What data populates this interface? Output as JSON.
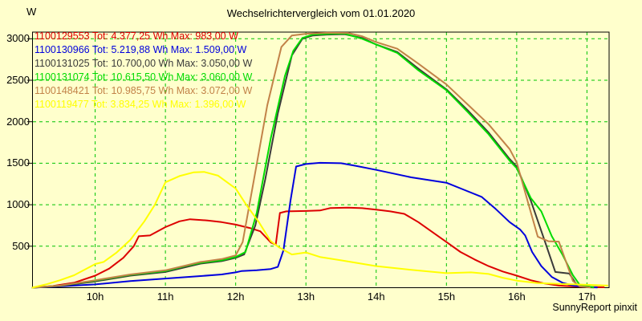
{
  "title": "Wechselrichtervergleich vom 01.01.2020",
  "y_unit": "W",
  "watermark": "SunnyReport pinxit",
  "colors": {
    "background": "#FFFFCC",
    "frame": "#000000",
    "grid": "#00C400",
    "text": "#000000"
  },
  "chart_data": {
    "type": "line",
    "title": "Wechselrichtervergleich vom 01.01.2020",
    "xlabel": "",
    "ylabel": "W",
    "grid": true,
    "legend_position": "top-left",
    "xlim_hours": [
      9.1,
      17.32
    ],
    "ylim": [
      0,
      3080
    ],
    "x_tick_hours": [
      10,
      11,
      12,
      13,
      14,
      15,
      16,
      17
    ],
    "x_tick_labels": [
      "10h",
      "11h",
      "12h",
      "13h",
      "14h",
      "15h",
      "16h",
      "17h"
    ],
    "y_ticks": [
      500,
      1000,
      1500,
      2000,
      2500,
      3000
    ],
    "series": [
      {
        "id": "1100129553",
        "legend": "1100129553 Tot: 4.377,25 Wh Max: 983,00 W",
        "total_wh": "4.377,25",
        "max_w": "983,00",
        "color": "#DD0000",
        "points": [
          [
            9.1,
            0
          ],
          [
            9.4,
            20
          ],
          [
            9.7,
            60
          ],
          [
            10.0,
            145
          ],
          [
            10.2,
            230
          ],
          [
            10.4,
            360
          ],
          [
            10.55,
            500
          ],
          [
            10.62,
            620
          ],
          [
            10.78,
            630
          ],
          [
            11.0,
            730
          ],
          [
            11.2,
            800
          ],
          [
            11.35,
            825
          ],
          [
            11.6,
            810
          ],
          [
            11.8,
            790
          ],
          [
            12.0,
            760
          ],
          [
            12.2,
            720
          ],
          [
            12.35,
            680
          ],
          [
            12.5,
            545
          ],
          [
            12.57,
            517
          ],
          [
            12.63,
            900
          ],
          [
            12.72,
            920
          ],
          [
            13.0,
            925
          ],
          [
            13.2,
            930
          ],
          [
            13.35,
            960
          ],
          [
            13.6,
            965
          ],
          [
            13.8,
            958
          ],
          [
            14.0,
            940
          ],
          [
            14.2,
            920
          ],
          [
            14.4,
            890
          ],
          [
            14.6,
            790
          ],
          [
            14.8,
            670
          ],
          [
            15.0,
            550
          ],
          [
            15.2,
            430
          ],
          [
            15.4,
            340
          ],
          [
            15.6,
            260
          ],
          [
            15.8,
            195
          ],
          [
            16.0,
            145
          ],
          [
            16.2,
            90
          ],
          [
            16.4,
            50
          ],
          [
            16.6,
            25
          ],
          [
            16.8,
            15
          ],
          [
            17.0,
            10
          ],
          [
            17.25,
            5
          ]
        ]
      },
      {
        "id": "1100130966",
        "legend": "1100130966 Tot: 5.219,88 Wh Max: 1.509,00 W",
        "total_wh": "5.219,88",
        "max_w": "1.509,00",
        "color": "#0000DD",
        "points": [
          [
            9.1,
            0
          ],
          [
            9.5,
            15
          ],
          [
            10.0,
            40
          ],
          [
            10.5,
            80
          ],
          [
            11.0,
            110
          ],
          [
            11.5,
            140
          ],
          [
            11.8,
            160
          ],
          [
            12.0,
            185
          ],
          [
            12.08,
            200
          ],
          [
            12.3,
            210
          ],
          [
            12.5,
            225
          ],
          [
            12.6,
            250
          ],
          [
            12.68,
            450
          ],
          [
            12.78,
            1050
          ],
          [
            12.86,
            1460
          ],
          [
            13.0,
            1490
          ],
          [
            13.2,
            1505
          ],
          [
            13.5,
            1500
          ],
          [
            13.7,
            1470
          ],
          [
            14.0,
            1420
          ],
          [
            14.5,
            1330
          ],
          [
            15.0,
            1265
          ],
          [
            15.25,
            1180
          ],
          [
            15.5,
            1095
          ],
          [
            15.7,
            950
          ],
          [
            15.9,
            790
          ],
          [
            16.05,
            700
          ],
          [
            16.12,
            630
          ],
          [
            16.22,
            430
          ],
          [
            16.35,
            260
          ],
          [
            16.5,
            130
          ],
          [
            16.65,
            60
          ],
          [
            16.8,
            25
          ],
          [
            17.0,
            8
          ],
          [
            17.15,
            3
          ]
        ]
      },
      {
        "id": "1100131025",
        "legend": "1100131025 Tot: 10.700,00 Wh Max: 3.050,00 W",
        "total_wh": "10.700,00",
        "max_w": "3.050,00",
        "color": "#3A3A3A",
        "points": [
          [
            9.1,
            0
          ],
          [
            9.5,
            20
          ],
          [
            10.0,
            75
          ],
          [
            10.5,
            145
          ],
          [
            11.0,
            190
          ],
          [
            11.3,
            250
          ],
          [
            11.5,
            290
          ],
          [
            11.8,
            320
          ],
          [
            12.0,
            360
          ],
          [
            12.12,
            400
          ],
          [
            12.28,
            750
          ],
          [
            12.42,
            1300
          ],
          [
            12.6,
            2100
          ],
          [
            12.8,
            2800
          ],
          [
            12.95,
            3000
          ],
          [
            13.1,
            3040
          ],
          [
            13.3,
            3050
          ],
          [
            13.55,
            3055
          ],
          [
            13.8,
            3010
          ],
          [
            14.0,
            2930
          ],
          [
            14.3,
            2840
          ],
          [
            14.6,
            2640
          ],
          [
            15.0,
            2390
          ],
          [
            15.3,
            2140
          ],
          [
            15.6,
            1870
          ],
          [
            15.9,
            1550
          ],
          [
            16.0,
            1460
          ],
          [
            16.2,
            1050
          ],
          [
            16.4,
            560
          ],
          [
            16.55,
            190
          ],
          [
            16.75,
            170
          ],
          [
            16.85,
            40
          ],
          [
            17.0,
            5
          ],
          [
            17.1,
            3
          ]
        ]
      },
      {
        "id": "1100131074",
        "legend": "1100131074 Tot: 10.615,50 Wh Max: 3.060,00 W",
        "total_wh": "10.615,50",
        "max_w": "3.060,00",
        "color": "#00DB00",
        "points": [
          [
            9.1,
            0
          ],
          [
            9.5,
            25
          ],
          [
            10.0,
            85
          ],
          [
            10.5,
            155
          ],
          [
            11.0,
            200
          ],
          [
            11.3,
            265
          ],
          [
            11.5,
            300
          ],
          [
            11.8,
            330
          ],
          [
            12.0,
            370
          ],
          [
            12.14,
            430
          ],
          [
            12.3,
            900
          ],
          [
            12.5,
            1800
          ],
          [
            12.7,
            2550
          ],
          [
            12.82,
            2855
          ],
          [
            12.95,
            3010
          ],
          [
            13.1,
            3050
          ],
          [
            13.35,
            3060
          ],
          [
            13.55,
            3062
          ],
          [
            13.8,
            3000
          ],
          [
            14.0,
            2930
          ],
          [
            14.3,
            2830
          ],
          [
            14.6,
            2620
          ],
          [
            15.0,
            2380
          ],
          [
            15.3,
            2120
          ],
          [
            15.6,
            1850
          ],
          [
            15.9,
            1530
          ],
          [
            16.0,
            1440
          ],
          [
            16.2,
            1080
          ],
          [
            16.35,
            920
          ],
          [
            16.5,
            620
          ],
          [
            16.65,
            400
          ],
          [
            16.8,
            150
          ],
          [
            16.9,
            30
          ],
          [
            17.1,
            5
          ]
        ]
      },
      {
        "id": "1100148421",
        "legend": "1100148421 Tot: 10.985,75 Wh Max: 3.072,00 W",
        "total_wh": "10.985,75",
        "max_w": "3.072,00",
        "color": "#C28248",
        "points": [
          [
            9.1,
            0
          ],
          [
            9.5,
            25
          ],
          [
            10.0,
            90
          ],
          [
            10.5,
            160
          ],
          [
            11.0,
            210
          ],
          [
            11.3,
            270
          ],
          [
            11.5,
            310
          ],
          [
            11.8,
            345
          ],
          [
            12.0,
            390
          ],
          [
            12.1,
            550
          ],
          [
            12.26,
            1300
          ],
          [
            12.45,
            2200
          ],
          [
            12.65,
            2900
          ],
          [
            12.8,
            3040
          ],
          [
            13.0,
            3060
          ],
          [
            13.3,
            3072
          ],
          [
            13.6,
            3070
          ],
          [
            13.8,
            3030
          ],
          [
            14.0,
            2960
          ],
          [
            14.3,
            2880
          ],
          [
            14.6,
            2700
          ],
          [
            15.0,
            2450
          ],
          [
            15.3,
            2210
          ],
          [
            15.6,
            1970
          ],
          [
            15.9,
            1670
          ],
          [
            16.0,
            1510
          ],
          [
            16.15,
            1060
          ],
          [
            16.3,
            615
          ],
          [
            16.45,
            560
          ],
          [
            16.6,
            555
          ],
          [
            16.8,
            80
          ],
          [
            16.9,
            15
          ],
          [
            17.05,
            4
          ]
        ]
      },
      {
        "id": "1100119477",
        "legend": "1100119477 Tot: 3.834,25 Wh Max: 1.396,00 W",
        "total_wh": "3.834,25",
        "max_w": "1.396,00",
        "color": "#FFFF00",
        "points": [
          [
            9.1,
            0
          ],
          [
            9.3,
            40
          ],
          [
            9.5,
            90
          ],
          [
            9.7,
            150
          ],
          [
            9.9,
            240
          ],
          [
            10.0,
            285
          ],
          [
            10.12,
            310
          ],
          [
            10.3,
            420
          ],
          [
            10.5,
            575
          ],
          [
            10.7,
            800
          ],
          [
            10.85,
            1000
          ],
          [
            11.0,
            1270
          ],
          [
            11.2,
            1345
          ],
          [
            11.4,
            1390
          ],
          [
            11.55,
            1396
          ],
          [
            11.75,
            1350
          ],
          [
            12.0,
            1195
          ],
          [
            12.15,
            1000
          ],
          [
            12.33,
            790
          ],
          [
            12.5,
            560
          ],
          [
            12.62,
            485
          ],
          [
            12.8,
            400
          ],
          [
            13.0,
            425
          ],
          [
            13.2,
            370
          ],
          [
            13.5,
            330
          ],
          [
            14.0,
            260
          ],
          [
            14.5,
            215
          ],
          [
            15.0,
            175
          ],
          [
            15.35,
            185
          ],
          [
            15.6,
            165
          ],
          [
            15.8,
            120
          ],
          [
            16.0,
            85
          ],
          [
            16.3,
            55
          ],
          [
            16.6,
            45
          ],
          [
            17.0,
            35
          ],
          [
            17.3,
            25
          ]
        ]
      }
    ]
  }
}
